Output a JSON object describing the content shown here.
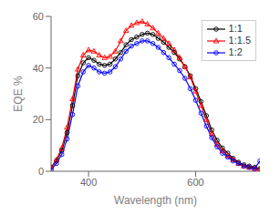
{
  "chart_data": {
    "type": "line",
    "xlabel": "Wavelength (nm)",
    "ylabel": "EQE %",
    "x": [
      330,
      340,
      350,
      360,
      370,
      380,
      390,
      400,
      410,
      420,
      430,
      440,
      450,
      460,
      470,
      480,
      490,
      500,
      510,
      520,
      530,
      540,
      550,
      560,
      570,
      580,
      590,
      600,
      610,
      620,
      630,
      640,
      650,
      660,
      670,
      680,
      690,
      700,
      710,
      720
    ],
    "xlim": [
      330,
      720
    ],
    "xticks": [
      400,
      600
    ],
    "ylim": [
      0,
      60
    ],
    "yticks": [
      0,
      20,
      40,
      60
    ],
    "grid": false,
    "legend": "upper right",
    "series": [
      {
        "name": "1:1",
        "color": "#000000",
        "marker": "circle",
        "values": [
          1.5,
          4.0,
          8.0,
          15.0,
          25.5,
          37.0,
          42.0,
          44.0,
          43.0,
          41.5,
          41.0,
          41.5,
          43.5,
          46.0,
          49.0,
          51.0,
          52.0,
          53.0,
          53.5,
          53.0,
          51.5,
          50.0,
          48.0,
          46.0,
          43.5,
          40.5,
          37.0,
          32.0,
          27.0,
          21.5,
          16.0,
          12.0,
          9.0,
          7.0,
          5.0,
          3.5,
          2.5,
          2.0,
          1.5,
          1.0
        ]
      },
      {
        "name": "1:1.5",
        "color": "#ff0000",
        "marker": "triangle",
        "values": [
          1.5,
          4.5,
          9.0,
          17.0,
          28.0,
          39.5,
          45.0,
          47.0,
          46.5,
          45.0,
          44.0,
          44.5,
          46.5,
          50.5,
          54.5,
          56.5,
          57.5,
          58.0,
          57.0,
          55.5,
          53.5,
          51.5,
          49.5,
          47.0,
          44.0,
          40.5,
          36.5,
          31.0,
          25.5,
          20.0,
          14.5,
          10.5,
          8.0,
          6.0,
          4.5,
          3.0,
          2.0,
          1.5,
          1.0,
          1.0
        ]
      },
      {
        "name": "1:2",
        "color": "#0000ff",
        "marker": "circle",
        "values": [
          0.5,
          3.0,
          6.5,
          12.5,
          22.0,
          33.0,
          38.5,
          41.0,
          40.0,
          38.5,
          38.0,
          38.5,
          40.5,
          43.5,
          46.5,
          48.5,
          49.5,
          50.5,
          50.5,
          49.5,
          48.0,
          46.0,
          44.0,
          41.5,
          39.0,
          36.0,
          32.0,
          27.5,
          22.5,
          17.5,
          13.0,
          9.5,
          7.0,
          5.5,
          4.0,
          3.0,
          2.0,
          1.5,
          1.0,
          4.0
        ]
      }
    ]
  }
}
